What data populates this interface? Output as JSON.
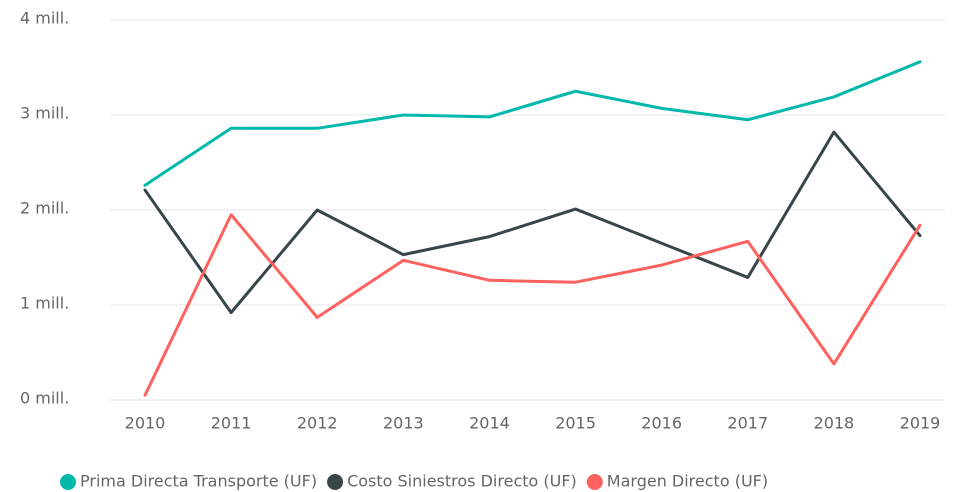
{
  "chart_data": {
    "type": "line",
    "categories": [
      "2010",
      "2011",
      "2012",
      "2013",
      "2014",
      "2015",
      "2016",
      "2017",
      "2018",
      "2019"
    ],
    "series": [
      {
        "name": "Prima Directa Transporte (UF)",
        "color": "#01B8AA",
        "values": [
          2.26,
          2.86,
          2.86,
          3.0,
          2.98,
          3.25,
          3.07,
          2.95,
          3.19,
          3.56
        ]
      },
      {
        "name": "Costo Siniestros Directo (UF)",
        "color": "#374649",
        "values": [
          2.21,
          0.92,
          2.0,
          1.53,
          1.72,
          2.01,
          1.65,
          1.29,
          2.82,
          1.73
        ]
      },
      {
        "name": "Margen Directo (UF)",
        "color": "#FD625E",
        "values": [
          0.05,
          1.95,
          0.87,
          1.47,
          1.26,
          1.24,
          1.42,
          1.67,
          0.38,
          1.84
        ]
      }
    ],
    "ylim": [
      0,
      4
    ],
    "yticks": [
      {
        "value": 0,
        "label": "0 mill."
      },
      {
        "value": 1,
        "label": "1 mill."
      },
      {
        "value": 2,
        "label": "2 mill."
      },
      {
        "value": 3,
        "label": "3 mill."
      },
      {
        "value": 4,
        "label": "4 mill."
      }
    ],
    "grid": true,
    "legend": "bottom"
  }
}
